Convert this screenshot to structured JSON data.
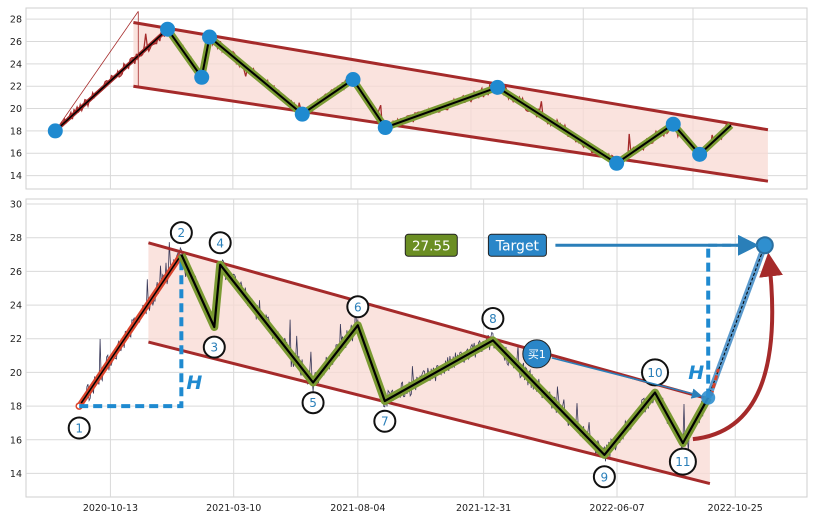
{
  "chart_data": [
    {
      "type": "line",
      "title": "",
      "xlabel": "",
      "ylabel": "",
      "ylim": [
        12.8,
        29.0
      ],
      "yticks": [
        14,
        16,
        18,
        20,
        22,
        24,
        26,
        28
      ],
      "xlim_days": [
        0,
        800
      ],
      "grid": true,
      "legend": "none",
      "colors": {
        "price": "#a52a2a",
        "channel": "#a52a2a",
        "zigzag_outer": "#7a9a32",
        "zigzag_inner": "#000000",
        "pivot": "#1f8ad0",
        "fill": "#f8d9d3"
      },
      "channel": {
        "upper": [
          [
            110,
            27.7
          ],
          [
            760,
            18.1
          ]
        ],
        "lower": [
          [
            110,
            22.0
          ],
          [
            760,
            13.5
          ]
        ]
      },
      "pivots": [
        {
          "x": 30,
          "y": 18.0
        },
        {
          "x": 145,
          "y": 27.1
        },
        {
          "x": 180,
          "y": 22.8
        },
        {
          "x": 188,
          "y": 26.4
        },
        {
          "x": 283,
          "y": 19.5
        },
        {
          "x": 335,
          "y": 22.6
        },
        {
          "x": 368,
          "y": 18.3
        },
        {
          "x": 483,
          "y": 21.9
        },
        {
          "x": 605,
          "y": 15.1
        },
        {
          "x": 663,
          "y": 18.6
        },
        {
          "x": 690,
          "y": 15.9
        },
        {
          "x": 722,
          "y": 18.5
        }
      ]
    },
    {
      "type": "line",
      "title": "",
      "xlabel": "",
      "ylabel": "",
      "ylim": [
        12.6,
        30.3
      ],
      "yticks": [
        14,
        16,
        18,
        20,
        22,
        24,
        26,
        28,
        30
      ],
      "xticks": [
        {
          "day": 100,
          "label": "2020-10-13"
        },
        {
          "day": 246,
          "label": "2021-03-10"
        },
        {
          "day": 393,
          "label": "2021-08-04"
        },
        {
          "day": 542,
          "label": "2021-12-31"
        },
        {
          "day": 700,
          "label": "2022-06-07"
        },
        {
          "day": 840,
          "label": "2022-10-25"
        }
      ],
      "xlim_days": [
        0,
        925
      ],
      "grid": true,
      "legend": "none",
      "colors": {
        "price": "#3a3a5a",
        "channel": "#a52a2a",
        "zigzag_outer": "#7a9a32",
        "zigzag_inner": "#000000",
        "impulse": "#c0392b",
        "dashed": "#1f8ad0",
        "target": "#1f8ad0",
        "curve": "#a52a2a",
        "fill": "#f8d9d3",
        "price_box": "#6b8e23"
      },
      "channel": {
        "upper": [
          [
            145,
            27.7
          ],
          [
            810,
            18.4
          ]
        ],
        "lower": [
          [
            145,
            21.8
          ],
          [
            810,
            13.4
          ]
        ]
      },
      "pivots": [
        {
          "label": "1",
          "x": 63,
          "y": 18.0,
          "lx": 63,
          "ly": 16.7
        },
        {
          "label": "2",
          "x": 184,
          "y": 27.0,
          "lx": 184,
          "ly": 28.3
        },
        {
          "label": "3",
          "x": 223,
          "y": 22.7,
          "lx": 223,
          "ly": 21.5
        },
        {
          "label": "4",
          "x": 230,
          "y": 26.4,
          "lx": 230,
          "ly": 27.7
        },
        {
          "label": "5",
          "x": 340,
          "y": 19.4,
          "lx": 340,
          "ly": 18.2
        },
        {
          "label": "6",
          "x": 393,
          "y": 22.8,
          "lx": 393,
          "ly": 23.9
        },
        {
          "label": "7",
          "x": 425,
          "y": 18.3,
          "lx": 425,
          "ly": 17.1
        },
        {
          "label": "8",
          "x": 553,
          "y": 21.9,
          "lx": 553,
          "ly": 23.2
        },
        {
          "label": "9",
          "x": 685,
          "y": 15.1,
          "lx": 685,
          "ly": 13.8
        },
        {
          "label": "10",
          "x": 745,
          "y": 18.8,
          "lx": 745,
          "ly": 20.0
        },
        {
          "label": "11",
          "x": 778,
          "y": 15.8,
          "lx": 778,
          "ly": 14.7
        },
        {
          "label": "",
          "x": 808,
          "y": 18.5,
          "lx": 808,
          "ly": 18.5
        }
      ],
      "annotations": {
        "price_label": "27.55",
        "target_label": "Target",
        "buy_label": "买1",
        "height_label": "H",
        "target_value": 27.55,
        "target_x": 875
      }
    }
  ],
  "xaxis": {
    "tick_labels": [
      "2020-10-13",
      "2021-03-10",
      "2021-08-04",
      "2021-12-31",
      "2022-06-07",
      "2022-10-25"
    ]
  }
}
